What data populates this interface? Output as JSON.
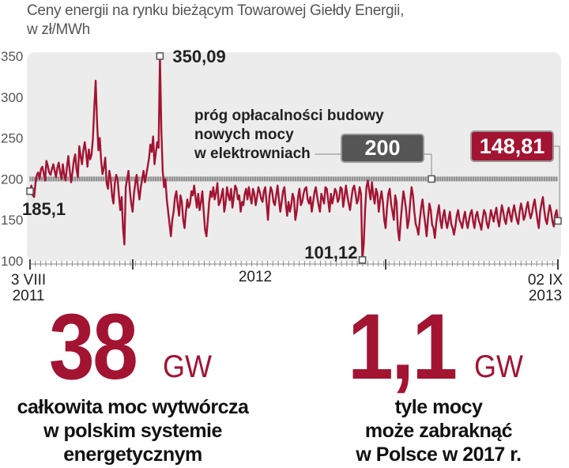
{
  "title_line1": "Ceny energii na rynku bieżącym Towarowej Giełdy Energii,",
  "title_line2": "w zł/MWh",
  "colors": {
    "series": "#a31432",
    "threshold_box": "#555555",
    "last_box": "#a31432",
    "big": "#a31432"
  },
  "chart_data": {
    "type": "line",
    "title": "Ceny energii na rynku bieżącym Towarowej Giełdy Energii, w zł/MWh",
    "ylim": [
      100,
      350
    ],
    "yticks": [
      "100",
      "150",
      "200",
      "250",
      "300",
      "350"
    ],
    "xlabel_start": [
      "3 VIII",
      "2011"
    ],
    "xlabel_mid": "2012",
    "xlabel_end": [
      "02 IX",
      "2013"
    ],
    "x_range": [
      "2011-08-03",
      "2013-09-02"
    ],
    "grid": false,
    "series": [
      {
        "values": [
          185.1,
          192,
          180,
          178,
          195,
          205,
          208,
          200,
          212,
          215,
          207,
          198,
          222,
          216,
          208,
          205,
          212,
          218,
          210,
          202,
          214,
          220,
          208,
          200,
          218,
          205,
          198,
          215,
          228,
          210,
          196,
          208,
          222,
          230,
          212,
          202,
          240,
          228,
          218,
          235,
          245,
          232,
          215,
          236,
          224,
          230,
          250,
          288,
          320,
          270,
          235,
          250,
          222,
          206,
          214,
          226,
          195,
          188,
          210,
          200,
          180,
          170,
          195,
          205,
          200,
          180,
          162,
          178,
          140,
          120,
          190,
          200,
          210,
          186,
          170,
          160,
          182,
          195,
          205,
          188,
          175,
          190,
          200,
          210,
          196,
          205,
          215,
          225,
          242,
          233,
          252,
          218,
          232,
          245,
          238,
          350.09,
          260,
          210,
          190,
          200,
          175,
          160,
          145,
          130,
          150,
          160,
          178,
          185,
          168,
          155,
          180,
          172,
          150,
          140,
          160,
          175,
          165,
          170,
          185,
          180,
          192,
          178,
          165,
          182,
          162,
          172,
          185,
          160,
          138,
          130,
          150,
          172,
          185,
          178,
          190,
          175,
          183,
          195,
          168,
          172,
          180,
          188,
          160,
          170,
          190,
          180,
          174,
          188,
          165,
          178,
          192,
          188,
          175,
          180,
          160,
          172,
          168,
          182,
          188,
          175,
          190,
          178,
          170,
          188,
          182,
          168,
          178,
          190,
          184,
          176,
          172,
          185,
          190,
          170,
          150,
          178,
          190,
          185,
          172,
          168,
          180,
          192,
          175,
          160,
          172,
          185,
          190,
          170,
          155,
          172,
          160,
          168,
          182,
          176,
          150,
          160,
          178,
          188,
          168,
          172,
          182,
          188,
          190,
          175,
          170,
          178,
          160,
          172,
          184,
          190,
          178,
          168,
          160,
          182,
          176,
          170,
          190,
          188,
          174,
          160,
          182,
          170,
          178,
          188,
          184,
          172,
          176,
          190,
          188,
          166,
          178,
          192,
          180,
          170,
          162,
          176,
          188,
          192,
          182,
          170,
          175,
          190,
          182,
          101.12,
          120,
          162,
          190,
          198,
          186,
          175,
          196,
          180,
          170,
          188,
          182,
          160,
          175,
          185,
          172,
          150,
          140,
          165,
          182,
          188,
          170,
          160,
          150,
          180,
          172,
          138,
          125,
          148,
          168,
          185,
          175,
          162,
          140,
          150,
          172,
          190,
          180,
          160,
          145,
          140,
          132,
          150,
          165,
          175,
          158,
          145,
          130,
          152,
          170,
          162,
          144,
          140,
          128,
          146,
          158,
          168,
          150,
          140,
          155,
          162,
          148,
          140,
          150,
          160,
          145,
          140,
          132,
          142,
          155,
          162,
          150,
          146,
          140,
          152,
          160,
          148,
          140,
          150,
          158,
          162,
          148,
          140,
          155,
          160,
          150,
          145,
          138,
          152,
          162,
          158,
          146,
          140,
          150,
          162,
          155,
          148,
          158,
          165,
          150,
          142,
          155,
          168,
          160,
          150,
          145,
          158,
          165,
          156,
          148,
          160,
          168,
          158,
          150,
          145,
          160,
          170,
          162,
          150,
          155,
          165,
          172,
          160,
          152,
          158,
          168,
          175,
          162,
          150,
          140,
          160,
          170,
          178,
          162,
          150,
          145,
          158,
          168,
          160,
          148,
          142,
          156,
          162,
          148.81
        ]
      }
    ],
    "threshold": {
      "value": 200,
      "label": "200",
      "text": [
        "próg opłacalności budowy",
        "nowych mocy",
        "w elektrowniach"
      ]
    },
    "annotations": {
      "start": "185,1",
      "peak": "350,09",
      "min": "101,12",
      "last": "148,81"
    }
  },
  "stat_left": {
    "value": "38",
    "unit": "GW",
    "caption": [
      "całkowita moc wytwórcza",
      "w polskim systemie",
      "energetycznym"
    ]
  },
  "stat_right": {
    "value": "1,1",
    "unit": "GW",
    "caption": [
      "tyle mocy",
      "może zabraknąć",
      "w Polsce w 2017 r."
    ]
  }
}
